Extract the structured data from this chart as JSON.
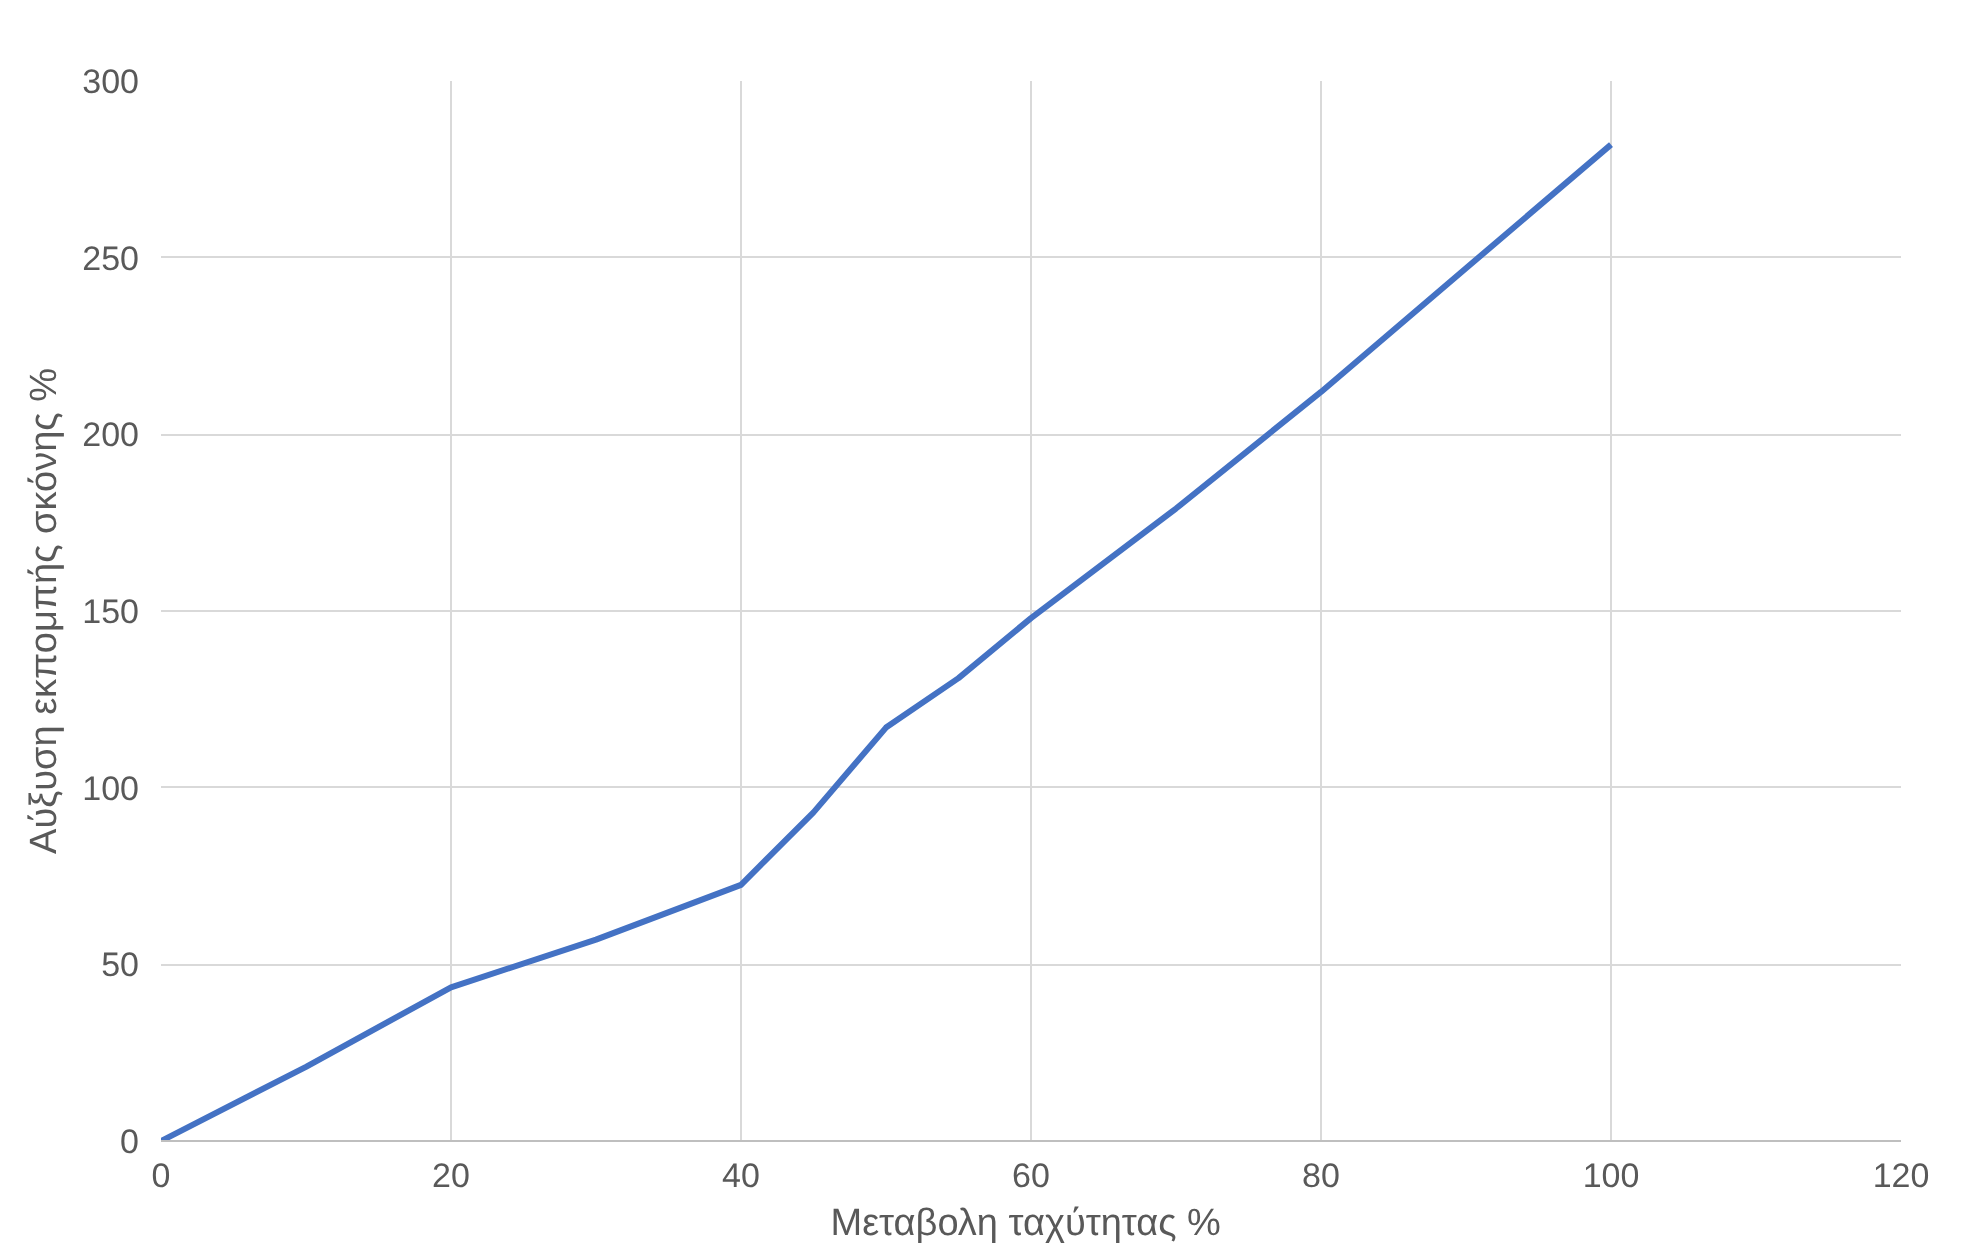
{
  "chart_data": {
    "type": "line",
    "xlabel": "Μεταβολη ταχύτητας  %",
    "ylabel": "Αύξυση εκπομπής σκόνης %",
    "x": [
      0,
      10,
      20,
      30,
      40,
      45,
      50,
      55,
      60,
      70,
      80,
      90,
      100
    ],
    "series": [
      {
        "color": "#4472c4",
        "values": [
          0,
          21,
          43.5,
          57,
          72.5,
          93,
          117,
          131,
          148,
          179,
          212,
          247,
          282
        ]
      }
    ],
    "xlim": [
      0,
      120
    ],
    "xticks": [
      0,
      20,
      40,
      60,
      80,
      100,
      120
    ],
    "ylim": [
      0,
      300
    ],
    "yticks": [
      0,
      50,
      100,
      150,
      200,
      250,
      300
    ],
    "grid": true,
    "marker": "none",
    "line_style": "solid"
  }
}
